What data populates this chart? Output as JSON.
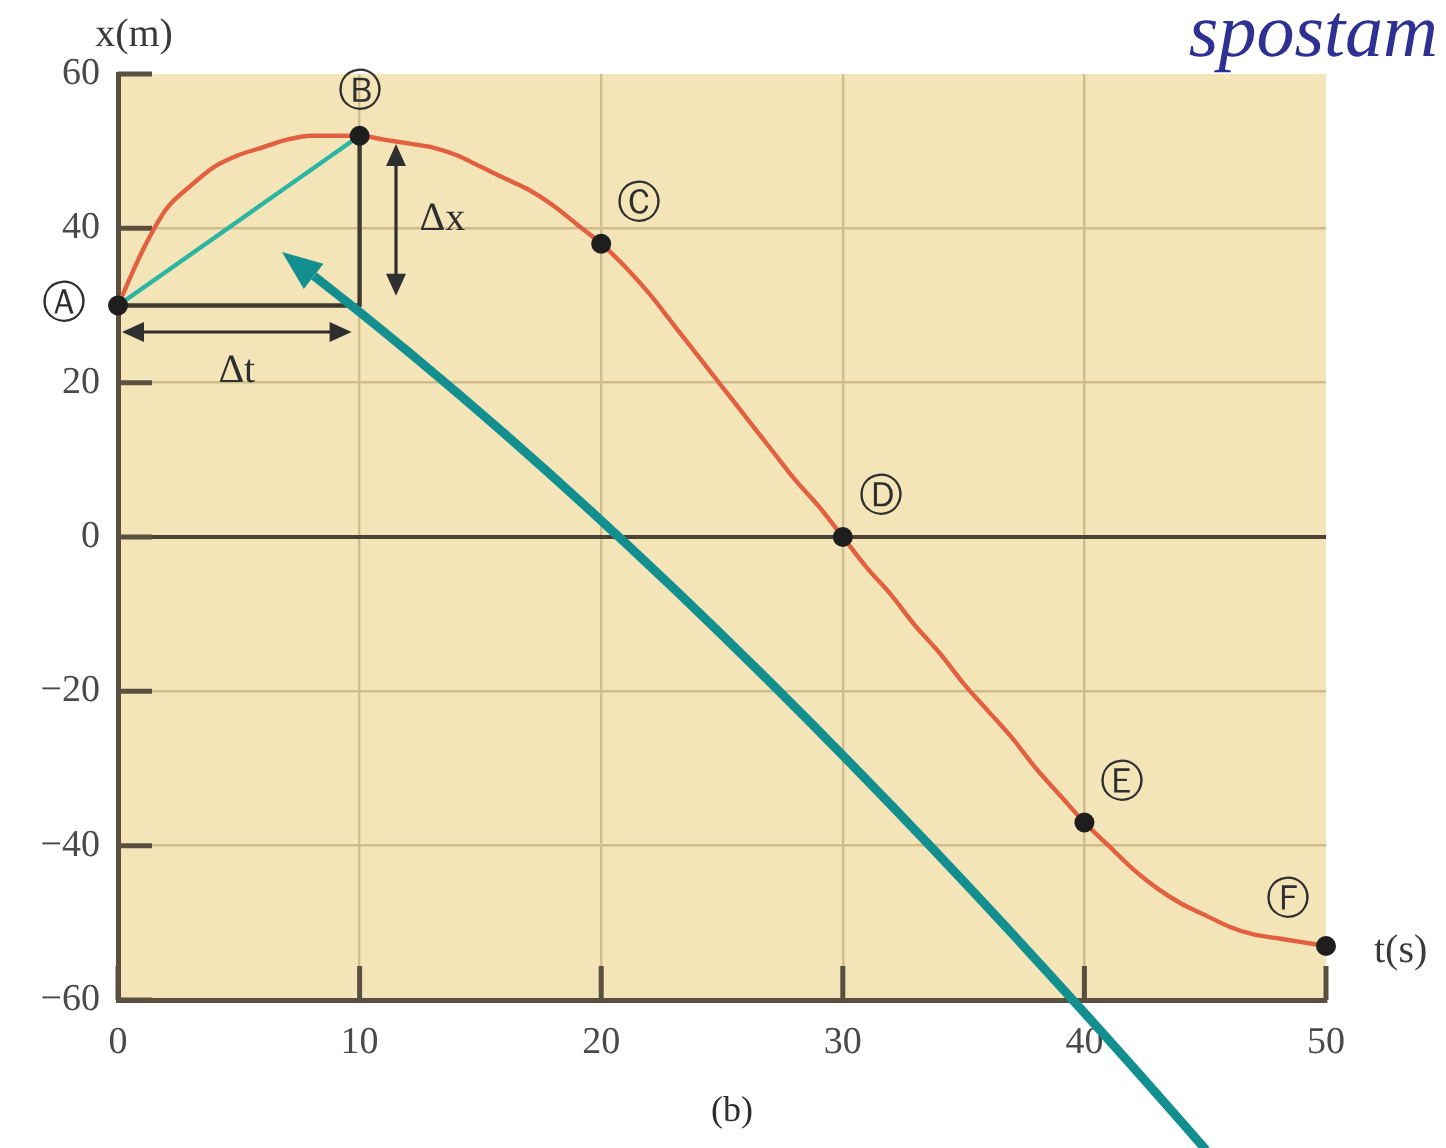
{
  "chart_data": {
    "type": "line",
    "title": "spostam",
    "xlabel": "t(s)",
    "ylabel": "x(m)",
    "xlim": [
      0,
      50
    ],
    "ylim": [
      -60,
      60
    ],
    "xticks": [
      0,
      10,
      20,
      30,
      40,
      50
    ],
    "yticks": [
      {
        "value": -60,
        "label": "−60"
      },
      {
        "value": -40,
        "label": "−40"
      },
      {
        "value": -20,
        "label": "−20"
      },
      0,
      20,
      40,
      60
    ],
    "grid": true,
    "marker": "none",
    "ref_lines": [
      {
        "axis": "y",
        "value": 0,
        "color": "#4a4334"
      }
    ],
    "series": [
      {
        "color": "#e2603f",
        "x": [
          0,
          1,
          2,
          3,
          4,
          5,
          6,
          7,
          8,
          9,
          10,
          11,
          12,
          13,
          14,
          15,
          16,
          17,
          18,
          19,
          20,
          21,
          22,
          23,
          24,
          25,
          26,
          27,
          28,
          29,
          30,
          31,
          32,
          33,
          34,
          35,
          36,
          37,
          38,
          39,
          40,
          41,
          42,
          43,
          44,
          45,
          46,
          47,
          48,
          49,
          50
        ],
        "values": [
          30,
          37,
          42.5,
          45.5,
          48,
          49.5,
          50.5,
          51.5,
          52,
          52,
          52,
          51.5,
          51,
          50.5,
          49.5,
          48,
          46.5,
          45,
          43,
          40.5,
          38,
          35,
          31.5,
          27.5,
          23.5,
          19.5,
          15.5,
          11.5,
          7.5,
          4,
          0,
          -4,
          -7.5,
          -11.5,
          -15,
          -19,
          -22.5,
          -26,
          -30,
          -33.5,
          -37,
          -40,
          -43,
          -45.5,
          -47.5,
          -49,
          -50.5,
          -51.5,
          -52,
          -52.5,
          -53
        ]
      },
      {
        "color": "#2cb5a3",
        "x": [
          0,
          10
        ],
        "values": [
          30,
          52
        ]
      },
      {
        "color": "#3f3a30",
        "x": [
          0,
          10,
          10
        ],
        "values": [
          30,
          30,
          52
        ]
      },
      {
        "type": "scatter",
        "marker": "circle",
        "color": "#1e1e1e",
        "x": [
          0,
          10,
          20,
          30,
          40,
          50
        ],
        "values": [
          30,
          52,
          38,
          0,
          -37,
          -53
        ]
      }
    ],
    "annotations": [
      {
        "text": "Ⓐ",
        "x": 0,
        "y": 30
      },
      {
        "text": "Ⓑ",
        "x": 10,
        "y": 52
      },
      {
        "text": "Ⓒ",
        "x": 20,
        "y": 38
      },
      {
        "text": "Ⓓ",
        "x": 30,
        "y": 0
      },
      {
        "text": "Ⓔ",
        "x": 40,
        "y": -37
      },
      {
        "text": "Ⓕ",
        "x": 50,
        "y": -53
      },
      "Δx",
      "Δt",
      "(b)"
    ]
  }
}
